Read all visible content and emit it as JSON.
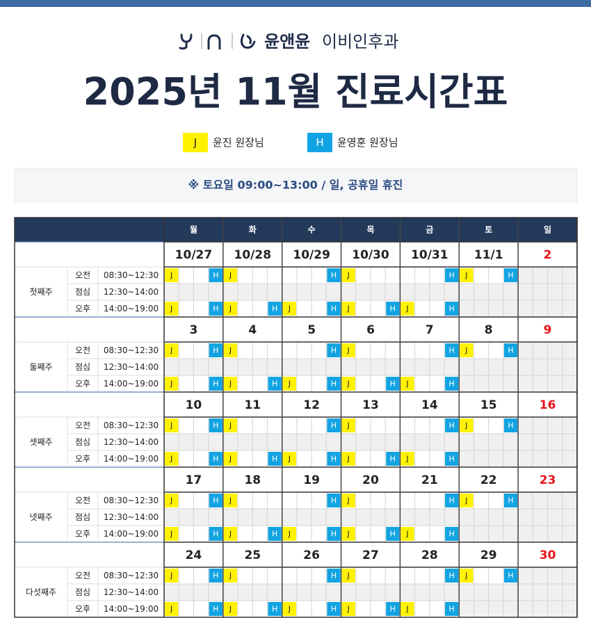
{
  "header": {
    "logo": "윤앤윤",
    "logo_sub": "이비인후과",
    "title": "2025년 11월 진료시간표"
  },
  "legend": [
    {
      "mark": "J",
      "label": "윤진 원장님"
    },
    {
      "mark": "H",
      "label": "윤영훈 원장님"
    }
  ],
  "notice": "※ 토요일  09:00~13:00 / 일, 공휴일 휴진",
  "table": {
    "days": [
      "월",
      "화",
      "수",
      "목",
      "금",
      "토",
      "일"
    ],
    "sessions": [
      {
        "name": "오전",
        "time": "08:30~12:30"
      },
      {
        "name": "점심",
        "time": "12:30~14:00"
      },
      {
        "name": "오후",
        "time": "14:00~19:00"
      }
    ],
    "weeks": [
      {
        "name": "첫째주",
        "dates": [
          "10/27",
          "10/28",
          "10/29",
          "10/30",
          "10/31",
          "11/1",
          "2"
        ],
        "slots": [
          [
            [
              "J",
              "H"
            ],
            [
              "J"
            ],
            [
              "H"
            ],
            [
              "J"
            ],
            [
              "H"
            ],
            [
              "J",
              "H"
            ],
            null
          ],
          [
            null,
            null,
            null,
            null,
            null,
            null,
            null
          ],
          [
            [
              "J",
              "H"
            ],
            [
              "J",
              "H"
            ],
            [
              "J",
              "H"
            ],
            [
              "J",
              "H"
            ],
            [
              "J",
              "H"
            ],
            null,
            null
          ]
        ]
      },
      {
        "name": "둘째주",
        "dates": [
          "3",
          "4",
          "5",
          "6",
          "7",
          "8",
          "9"
        ],
        "slots": [
          [
            [
              "J",
              "H"
            ],
            [
              "J"
            ],
            [
              "H"
            ],
            [
              "J"
            ],
            [
              "H"
            ],
            [
              "J",
              "H"
            ],
            null
          ],
          [
            null,
            null,
            null,
            null,
            null,
            null,
            null
          ],
          [
            [
              "J",
              "H"
            ],
            [
              "J",
              "H"
            ],
            [
              "J",
              "H"
            ],
            [
              "J",
              "H"
            ],
            [
              "J",
              "H"
            ],
            null,
            null
          ]
        ]
      },
      {
        "name": "셋째주",
        "dates": [
          "10",
          "11",
          "12",
          "13",
          "14",
          "15",
          "16"
        ],
        "slots": [
          [
            [
              "J",
              "H"
            ],
            [
              "J"
            ],
            [
              "H"
            ],
            [
              "J"
            ],
            [
              "H"
            ],
            [
              "J",
              "H"
            ],
            null
          ],
          [
            null,
            null,
            null,
            null,
            null,
            null,
            null
          ],
          [
            [
              "J",
              "H"
            ],
            [
              "J",
              "H"
            ],
            [
              "J",
              "H"
            ],
            [
              "J",
              "H"
            ],
            [
              "J",
              "H"
            ],
            null,
            null
          ]
        ]
      },
      {
        "name": "넷째주",
        "dates": [
          "17",
          "18",
          "19",
          "20",
          "21",
          "22",
          "23"
        ],
        "slots": [
          [
            [
              "J",
              "H"
            ],
            [
              "J"
            ],
            [
              "H"
            ],
            [
              "J"
            ],
            [
              "H"
            ],
            [
              "J",
              "H"
            ],
            null
          ],
          [
            null,
            null,
            null,
            null,
            null,
            null,
            null
          ],
          [
            [
              "J",
              "H"
            ],
            [
              "J",
              "H"
            ],
            [
              "J",
              "H"
            ],
            [
              "J",
              "H"
            ],
            [
              "J",
              "H"
            ],
            null,
            null
          ]
        ]
      },
      {
        "name": "다섯째주",
        "dates": [
          "24",
          "25",
          "26",
          "27",
          "28",
          "29",
          "30"
        ],
        "slots": [
          [
            [
              "J",
              "H"
            ],
            [
              "J"
            ],
            [
              "H"
            ],
            [
              "J"
            ],
            [
              "H"
            ],
            [
              "J",
              "H"
            ],
            null
          ],
          [
            null,
            null,
            null,
            null,
            null,
            null,
            null
          ],
          [
            [
              "J",
              "H"
            ],
            [
              "J",
              "H"
            ],
            [
              "J",
              "H"
            ],
            [
              "J",
              "H"
            ],
            [
              "J",
              "H"
            ],
            null,
            null
          ]
        ]
      }
    ]
  }
}
